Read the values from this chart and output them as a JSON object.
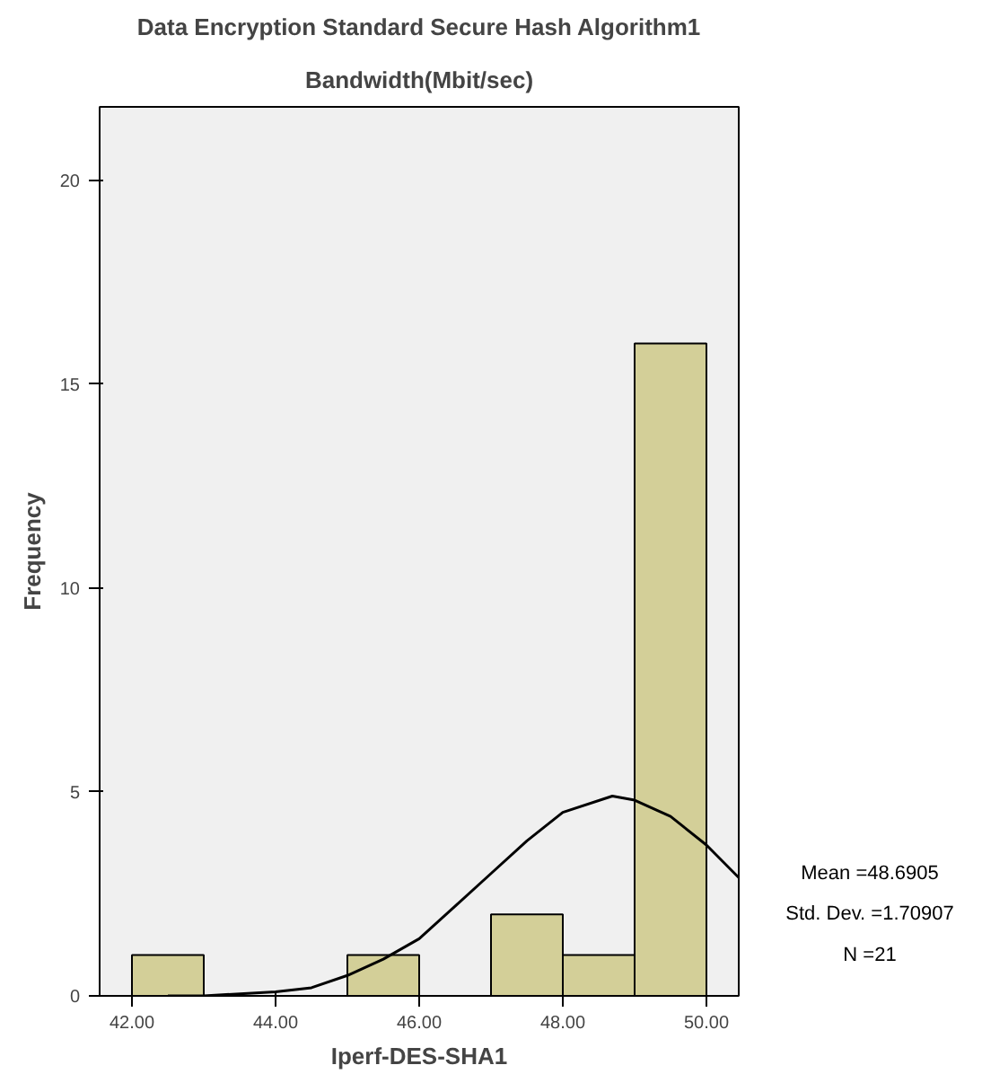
{
  "chart_data": {
    "type": "histogram",
    "title": "Data Encryption Standard Secure Hash Algorithm1",
    "subtitle": "Bandwidth(Mbit/sec)",
    "xlabel": "Iperf-DES-SHA1",
    "ylabel": "Frequency",
    "bins": [
      42,
      43,
      44,
      45,
      46,
      47,
      48,
      49,
      50
    ],
    "values": [
      1,
      0,
      0,
      1,
      0,
      2,
      1,
      16
    ],
    "color": "#d3cf98",
    "series": [
      {
        "type": "line",
        "color": "#000000",
        "x": [
          42.5,
          43,
          44,
          44.5,
          45,
          45.5,
          46,
          46.5,
          47,
          47.5,
          48,
          48.69,
          49,
          49.5,
          50,
          50.45
        ],
        "values": [
          0,
          0,
          0.1,
          0.2,
          0.5,
          0.9,
          1.4,
          2.2,
          3.0,
          3.8,
          4.5,
          4.9,
          4.8,
          4.4,
          3.7,
          2.9
        ]
      }
    ],
    "xlim": [
      41.55,
      50.45
    ],
    "xticks": [
      {
        "value": 42,
        "label": "42.00"
      },
      {
        "value": 44,
        "label": "44.00"
      },
      {
        "value": 46,
        "label": "46.00"
      },
      {
        "value": 48,
        "label": "48.00"
      },
      {
        "value": 50,
        "label": "50.00"
      }
    ],
    "ylim": [
      0,
      21.8
    ],
    "yticks": [
      0,
      5,
      10,
      15,
      20
    ],
    "grid": false,
    "annotations": [
      "Mean =48.6905",
      "Std. Dev. =1.70907",
      "N =21"
    ]
  }
}
